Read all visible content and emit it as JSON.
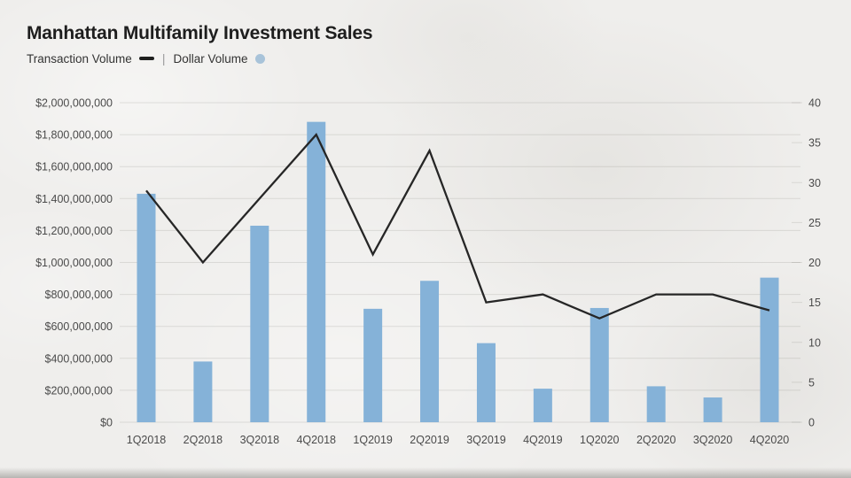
{
  "page": {
    "background": "#efeeec"
  },
  "header": {
    "title": "Manhattan Multifamily Investment Sales",
    "legend": {
      "transaction_volume_label": "Transaction Volume",
      "separator": "|",
      "dollar_volume_label": "Dollar Volume"
    }
  },
  "chart_data": {
    "type": "combo",
    "title": "Manhattan Multifamily Investment Sales",
    "categories": [
      "1Q2018",
      "2Q2018",
      "3Q2018",
      "4Q2018",
      "1Q2019",
      "2Q2019",
      "3Q2019",
      "4Q2019",
      "1Q2020",
      "2Q2020",
      "3Q2020",
      "4Q2020"
    ],
    "series": [
      {
        "name": "Dollar Volume",
        "type": "bar",
        "axis": "left",
        "color": "#85b2d8",
        "values": [
          1430000000,
          380000000,
          1230000000,
          1880000000,
          710000000,
          885000000,
          495000000,
          210000000,
          715000000,
          225000000,
          155000000,
          905000000
        ]
      },
      {
        "name": "Transaction Volume",
        "type": "line",
        "axis": "right",
        "color": "#262626",
        "values": [
          29,
          20,
          28,
          36,
          21,
          34,
          15,
          16,
          13,
          16,
          16,
          14
        ]
      }
    ],
    "axis_left": {
      "min": 0,
      "max": 2000000000,
      "step": 200000000,
      "tick_labels": [
        "$0",
        "$200,000,000",
        "$400,000,000",
        "$600,000,000",
        "$800,000,000",
        "$1,000,000,000",
        "$1,200,000,000",
        "$1,400,000,000",
        "$1,600,000,000",
        "$1,800,000,000",
        "$2,000,000,000"
      ]
    },
    "axis_right": {
      "min": 0,
      "max": 40,
      "step": 5,
      "tick_labels": [
        "0",
        "5",
        "10",
        "15",
        "20",
        "25",
        "30",
        "35",
        "40"
      ]
    },
    "grid": true,
    "legend_position": "top-left",
    "colors": {
      "grid": "rgba(60,60,55,0.13)",
      "axis_text": "#4a4a4a"
    }
  }
}
